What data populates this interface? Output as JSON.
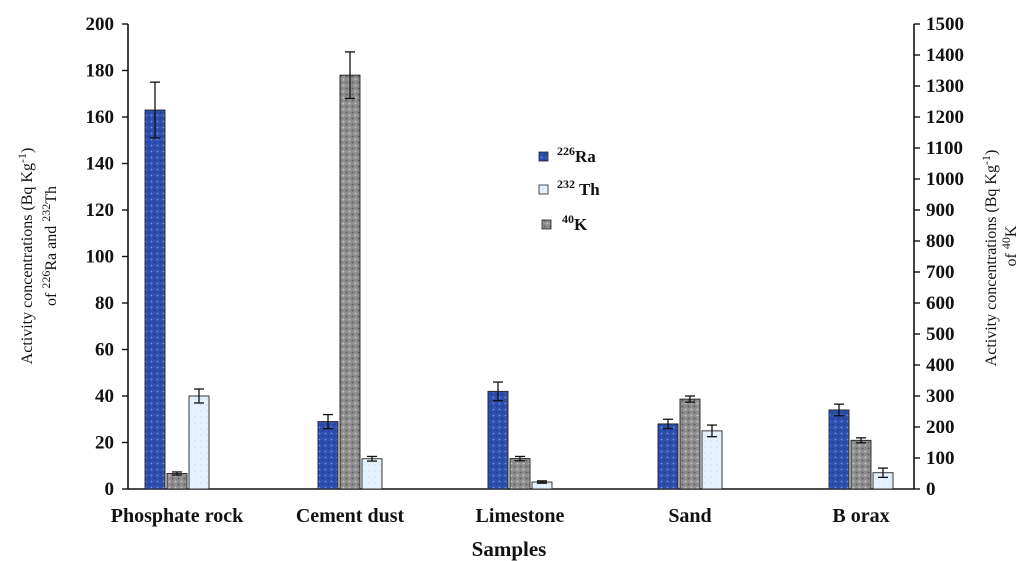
{
  "chart_data": {
    "type": "bar",
    "xlabel": "Samples",
    "ylabel_left": {
      "line1": {
        "text": "Activity concentrations (Bq Kg",
        "sup": "-1",
        "tail": ")"
      },
      "line2": {
        "pre": "of ",
        "sup1": "226",
        "mid": "Ra and ",
        "sup2": "232",
        "tail": "Th"
      }
    },
    "ylabel_right": {
      "line1": {
        "text": "Activity concentrations (Bq Kg",
        "sup": "-1",
        "tail": ")"
      },
      "line2": {
        "pre": "of ",
        "sup": "40",
        "tail": "K"
      }
    },
    "categories": [
      "Phosphate rock",
      "Cement dust",
      "Limestone",
      "Sand",
      "B orax"
    ],
    "ylim_left": [
      0,
      200
    ],
    "ylim_right": [
      0,
      1500
    ],
    "yticks_left": [
      "0",
      "20",
      "40",
      "60",
      "80",
      "100",
      "120",
      "140",
      "160",
      "180",
      "200"
    ],
    "yticks_right": [
      "0",
      "100",
      "200",
      "300",
      "400",
      "500",
      "600",
      "700",
      "800",
      "900",
      "1000",
      "1100",
      "1200",
      "1300",
      "1400",
      "1500"
    ],
    "series": [
      {
        "name": {
          "sup": "226",
          "base": "Ra"
        },
        "axis": "left",
        "color": "#3355b8",
        "values": [
          163,
          29,
          42,
          28,
          34
        ],
        "errors": [
          12,
          3,
          4,
          2,
          2.5
        ]
      },
      {
        "name": {
          "sup": "232",
          "base": " Th"
        },
        "axis": "left",
        "color": "#ddeeff",
        "values": [
          40,
          13,
          3,
          25,
          7
        ],
        "errors": [
          3,
          1,
          0.5,
          2.5,
          2
        ]
      },
      {
        "name": {
          "sup": "40",
          "base": "K"
        },
        "axis": "right",
        "color": "#9a9a9a",
        "values": [
          50,
          1335,
          98,
          290,
          157
        ],
        "errors": [
          5,
          75,
          7,
          10,
          8
        ]
      }
    ],
    "legend_position": "center",
    "grid": false
  }
}
